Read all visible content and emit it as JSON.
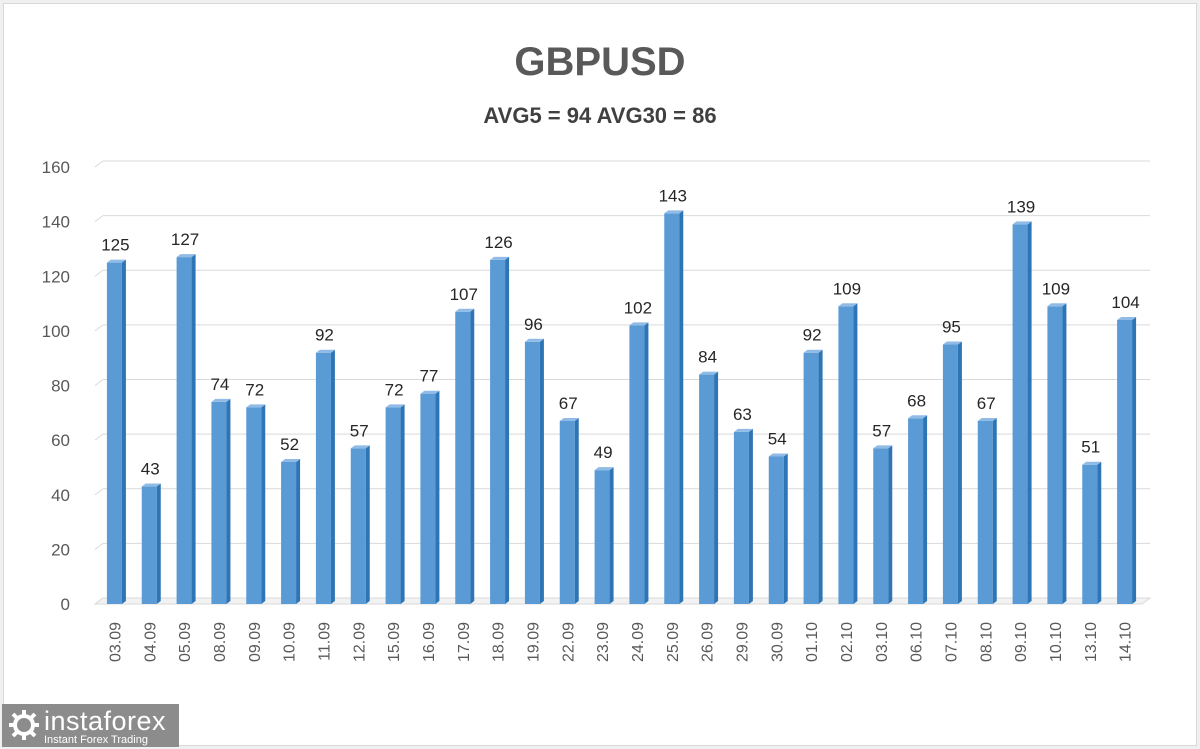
{
  "chart_data": {
    "type": "bar",
    "title": "GBPUSD",
    "subtitle": "AVG5 = 94 AVG30 = 86",
    "categories": [
      "03.09",
      "04.09",
      "05.09",
      "08.09",
      "09.09",
      "10.09",
      "11.09",
      "12.09",
      "15.09",
      "16.09",
      "17.09",
      "18.09",
      "19.09",
      "22.09",
      "23.09",
      "24.09",
      "25.09",
      "26.09",
      "29.09",
      "30.09",
      "01.10",
      "02.10",
      "03.10",
      "06.10",
      "07.10",
      "08.10",
      "09.10",
      "10.10",
      "13.10",
      "14.10"
    ],
    "values": [
      125,
      43,
      127,
      74,
      72,
      52,
      92,
      57,
      72,
      77,
      107,
      126,
      96,
      67,
      49,
      102,
      143,
      84,
      63,
      54,
      92,
      109,
      57,
      68,
      95,
      67,
      139,
      109,
      51,
      104
    ],
    "ylim": [
      0,
      160
    ],
    "yticks": [
      0,
      20,
      40,
      60,
      80,
      100,
      120,
      140,
      160
    ],
    "grid": true,
    "data_labels": true,
    "bar_color": "#5b9bd5",
    "xlabel": "",
    "ylabel": ""
  },
  "watermark": {
    "name": "instaforex",
    "tagline": "Instant Forex Trading"
  }
}
